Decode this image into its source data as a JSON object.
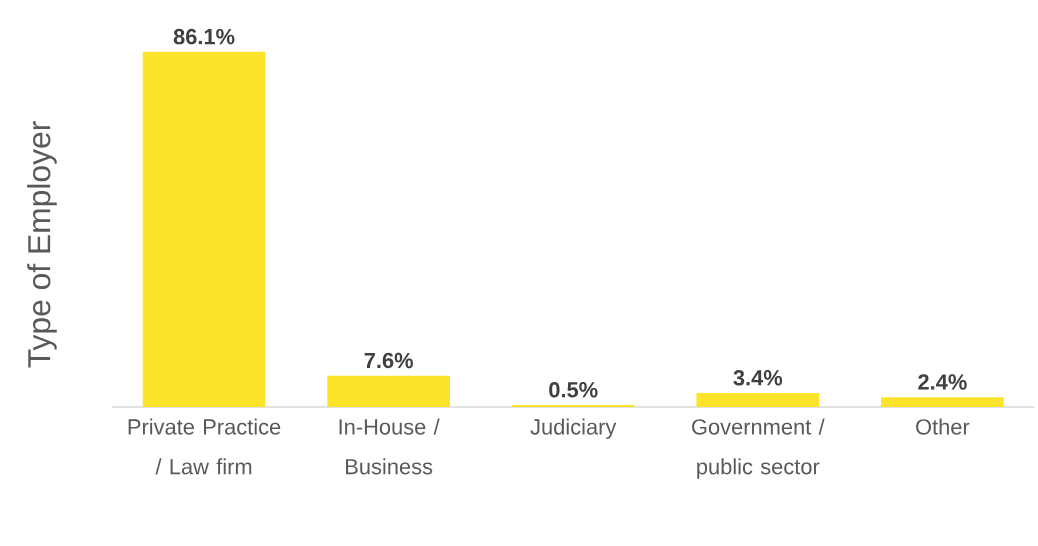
{
  "chart_data": {
    "type": "bar",
    "ylabel": "Type of Employer",
    "categories": [
      "Private Practice / Law firm",
      "In-House / Business",
      "Judiciary",
      "Government / public sector",
      "Other"
    ],
    "values": [
      86.1,
      7.6,
      0.5,
      3.4,
      2.4
    ],
    "value_labels": [
      "86.1%",
      "7.6%",
      "0.5%",
      "3.4%",
      "2.4%"
    ],
    "color": "#fde42a"
  }
}
